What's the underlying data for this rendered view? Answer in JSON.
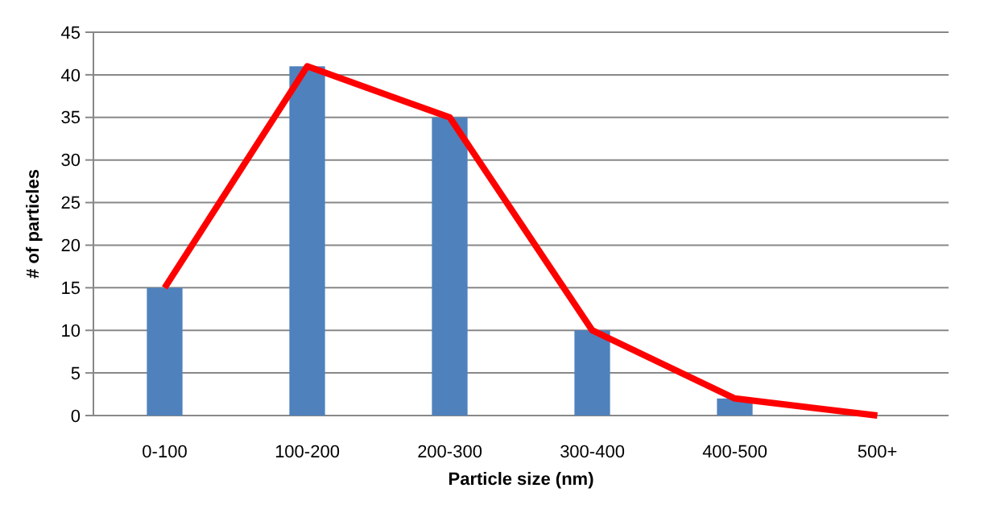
{
  "chart_data": {
    "type": "bar",
    "xlabel": "Particle size (nm)",
    "ylabel": "# of particles",
    "categories": [
      "0-100",
      "100-200",
      "200-300",
      "300-400",
      "400-500",
      "500+"
    ],
    "series": [
      {
        "color": "#4f81bd",
        "values": [
          15,
          41,
          35,
          10,
          2,
          0
        ]
      },
      {
        "type": "line",
        "color": "#ff0000",
        "values": [
          15,
          41,
          35,
          10,
          2,
          0
        ]
      }
    ],
    "ylim": [
      0,
      45
    ],
    "yticks": [
      0,
      5,
      10,
      15,
      20,
      25,
      30,
      35,
      40,
      45
    ],
    "grid": "y",
    "marker": "none",
    "line_style": "solid"
  }
}
